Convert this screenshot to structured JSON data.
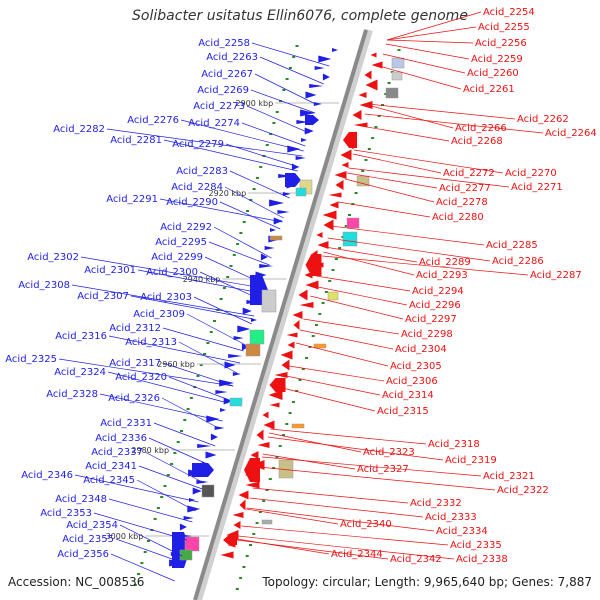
{
  "title": "Solibacter usitatus Ellin6076, complete genome",
  "footer": {
    "accession": "Accession: NC_008536",
    "summary": "Topology: circular; Length: 9,965,640 bp; Genes: 7,887"
  },
  "colors": {
    "plus_strand": "#1f1fe6",
    "minus_strand": "#ee1111",
    "backbone": "#8a8a8a",
    "tick": "#2a8a2a"
  },
  "kbp_marks": [
    "2900 kbp",
    "2920 kbp",
    "2940 kbp",
    "2960 kbp",
    "2980 kbp",
    "3000 kbp"
  ],
  "left_labels": [
    "Acid_2258",
    "Acid_2263",
    "Acid_2267",
    "Acid_2269",
    "Acid_2273",
    "Acid_2276",
    "Acid_2274",
    "Acid_2282",
    "Acid_2281",
    "Acid_2279",
    "Acid_2283",
    "Acid_2284",
    "Acid_2291",
    "Acid_2290",
    "Acid_2292",
    "Acid_2295",
    "Acid_2299",
    "Acid_2302",
    "Acid_2301",
    "Acid_2300",
    "Acid_2308",
    "Acid_2307",
    "Acid_2303",
    "Acid_2309",
    "Acid_2312",
    "Acid_2316",
    "Acid_2313",
    "Acid_2317",
    "Acid_2325",
    "Acid_2324",
    "Acid_2320",
    "Acid_2328",
    "Acid_2326",
    "Acid_2331",
    "Acid_2336",
    "Acid_2337",
    "Acid_2341",
    "Acid_2346",
    "Acid_2345",
    "Acid_2348",
    "Acid_2353",
    "Acid_2354",
    "Acid_2355",
    "Acid_2356"
  ],
  "right_labels": [
    "Acid_2254",
    "Acid_2255",
    "Acid_2256",
    "Acid_2259",
    "Acid_2260",
    "Acid_2261",
    "Acid_2262",
    "Acid_2264",
    "Acid_2266",
    "Acid_2268",
    "Acid_2272",
    "Acid_2270",
    "Acid_2277",
    "Acid_2271",
    "Acid_2278",
    "Acid_2280",
    "Acid_2285",
    "Acid_2286",
    "Acid_2289",
    "Acid_2287",
    "Acid_2293",
    "Acid_2294",
    "Acid_2296",
    "Acid_2297",
    "Acid_2298",
    "Acid_2304",
    "Acid_2305",
    "Acid_2306",
    "Acid_2314",
    "Acid_2315",
    "Acid_2318",
    "Acid_2323",
    "Acid_2319",
    "Acid_2327",
    "Acid_2321",
    "Acid_2322",
    "Acid_2332",
    "Acid_2333",
    "Acid_2334",
    "Acid_2340",
    "Acid_2335",
    "Acid_2338",
    "Acid_2344",
    "Acid_2342"
  ]
}
